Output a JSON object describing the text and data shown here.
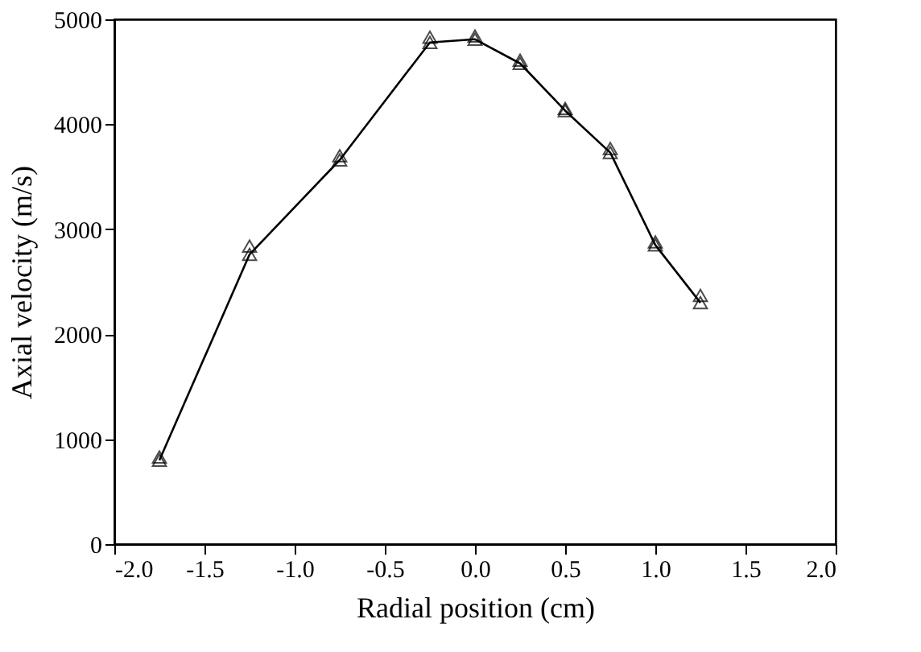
{
  "chart_data": {
    "type": "line",
    "xlabel": "Radial position (cm)",
    "ylabel": "Axial velocity (m/s)",
    "x": [
      -1.75,
      -1.25,
      -0.75,
      -0.25,
      0,
      0.25,
      0.5,
      0.75,
      1.0,
      1.25
    ],
    "series": [
      {
        "color": "#000000",
        "marker": "triangle",
        "values": [
          800,
          2760,
          3660,
          4780,
          4810,
          4580,
          4130,
          3730,
          2850,
          2300
        ]
      },
      {
        "type": "scatter",
        "color": "#000000",
        "marker": "triangle",
        "values": [
          830,
          2840,
          3700,
          4830,
          4840,
          4610,
          4150,
          3770,
          2880,
          2370
        ]
      }
    ],
    "xlim": [
      -2,
      2
    ],
    "ylim": [
      0,
      5000
    ],
    "xticks": [
      {
        "value": -2,
        "label": "-2.0"
      },
      {
        "value": -1.5,
        "label": "-1.5"
      },
      {
        "value": -1,
        "label": "-1.0"
      },
      {
        "value": -0.5,
        "label": "-0.5"
      },
      {
        "value": 0,
        "label": "0.0"
      },
      {
        "value": 0.5,
        "label": "0.5"
      },
      {
        "value": 1,
        "label": "1.0"
      },
      {
        "value": 1.5,
        "label": "1.5"
      },
      {
        "value": 2,
        "label": "2.0"
      }
    ],
    "yticks": [
      0,
      1000,
      2000,
      3000,
      4000,
      5000
    ],
    "grid": false,
    "line_style": "solid"
  }
}
